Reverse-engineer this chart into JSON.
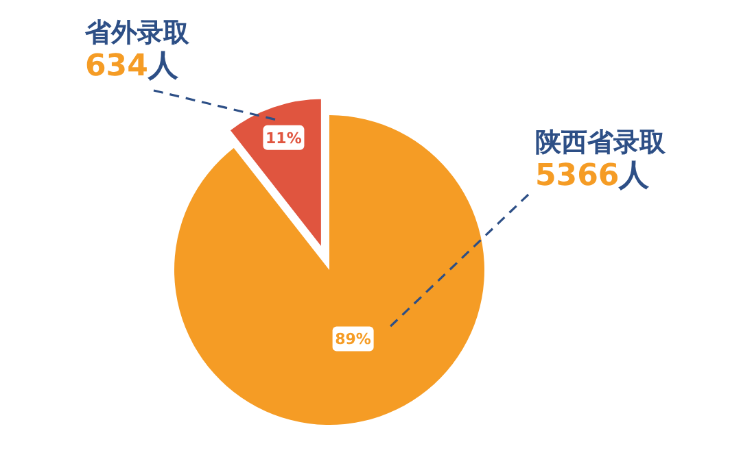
{
  "chart_data": {
    "type": "pie",
    "categories": [
      "省外录取",
      "陕西省录取"
    ],
    "values": [
      634,
      5366
    ],
    "colors": [
      "#e0553f",
      "#f59c25"
    ],
    "value_labels": [
      "634人",
      "5366人"
    ],
    "annotations": [
      "11%",
      "89%"
    ]
  }
}
